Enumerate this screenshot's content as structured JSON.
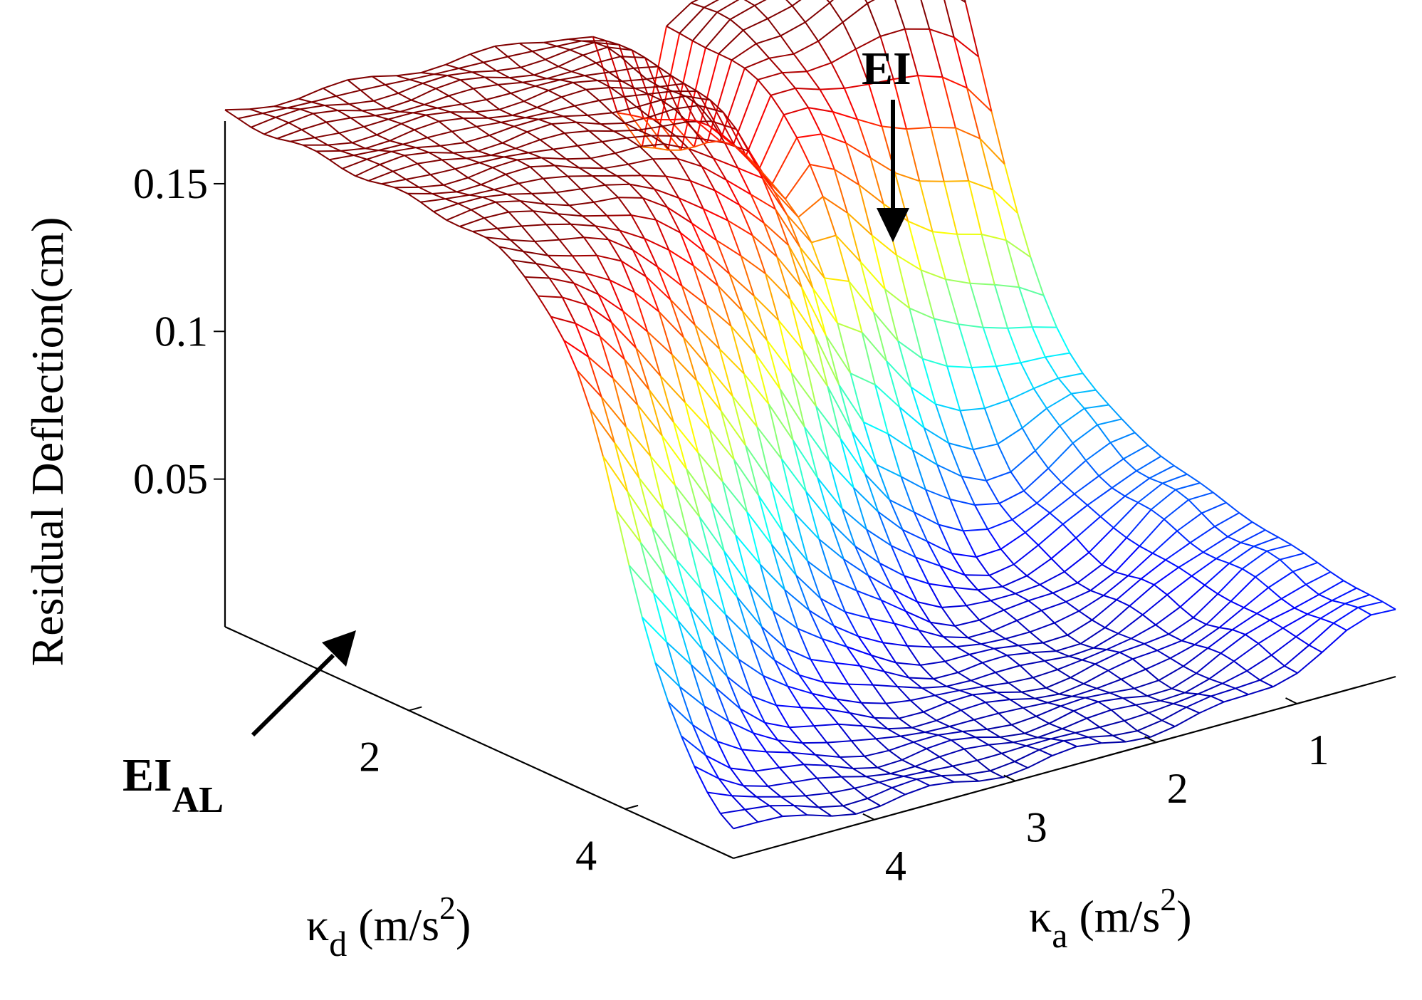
{
  "chart_data": {
    "type": "surface",
    "title": "",
    "zlabel": "Residual Deflection(cm)",
    "xlabel": {
      "main": "κ",
      "sub": "d",
      "unit": " (m/s",
      "sup": "2",
      "close": ")"
    },
    "ylabel": {
      "main": "κ",
      "sub": "a",
      "unit": " (m/s",
      "sup": "2",
      "close": ")"
    },
    "x_ticks": [
      {
        "value": 2,
        "label": "2"
      },
      {
        "value": 4,
        "label": "4"
      }
    ],
    "y_ticks": [
      {
        "value": 1,
        "label": "1"
      },
      {
        "value": 2,
        "label": "2"
      },
      {
        "value": 3,
        "label": "3"
      },
      {
        "value": 4,
        "label": "4"
      }
    ],
    "z_ticks": [
      {
        "value": 0.05,
        "label": "0.05"
      },
      {
        "value": 0.1,
        "label": "0.1"
      },
      {
        "value": 0.15,
        "label": "0.15"
      }
    ],
    "x_range": [
      0.3,
      5
    ],
    "y_range": [
      0.3,
      5
    ],
    "z_range": [
      0,
      0.18
    ],
    "grid_resolution": [
      40,
      28
    ],
    "colormap": "jet",
    "colormap_stops": [
      "#00008f",
      "#0000ff",
      "#00ffff",
      "#ffff00",
      "#ff0000",
      "#800000"
    ],
    "grid": false,
    "surface_description": {
      "z_at_low_kd_high_ka": 0.17,
      "z_at_low_kd_low_ka": 0.16,
      "z_at_high_kd_low_ka": 0.07,
      "z_floor_high_kd_high_ka": 0.005,
      "ridge_kd_at_low_ka": 1.2,
      "ridge_kd_at_high_ka": 4.0,
      "valley_ka": 2.1,
      "valley_min_z": 0.12
    },
    "annotations": [
      {
        "text": "EI",
        "sub": "",
        "target": {
          "kd": 0.3,
          "ka": 2.1,
          "z": 0.12
        }
      },
      {
        "text": "EI",
        "sub": "AL",
        "target": {
          "kd": 1.0,
          "ka": 4.9,
          "z": 0.01
        }
      }
    ]
  }
}
